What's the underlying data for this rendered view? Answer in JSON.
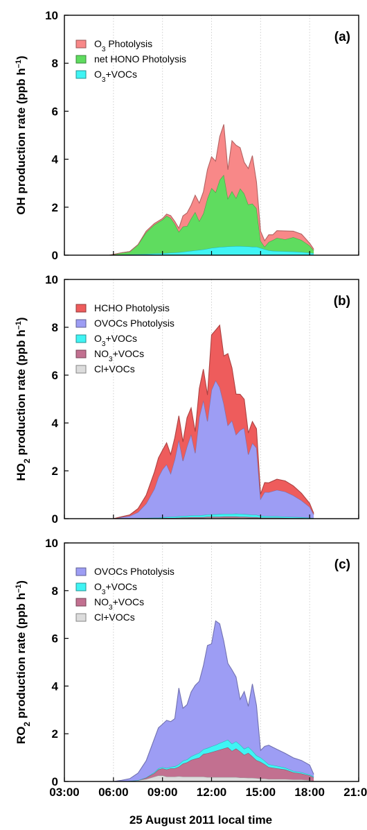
{
  "figure": {
    "xlabel": "25 August 2011 local time"
  },
  "chart_data": [
    {
      "type": "area",
      "panel_label": "(a)",
      "ylabel": "OH production rate (ppb h⁻¹)",
      "ylabel_parts": {
        "pre": "OH production rate (ppb h",
        "sup": "–1",
        "post": ")"
      },
      "xlim": [
        "03:00",
        "21:00"
      ],
      "ylim": [
        0,
        10
      ],
      "x_ticks": [
        "03:00",
        "06:00",
        "09:00",
        "12:00",
        "15:00",
        "18:00",
        "21:00"
      ],
      "y_ticks": [
        "0",
        "2",
        "4",
        "6",
        "8",
        "10"
      ],
      "grid": "vertical dotted at each tick",
      "legend_position": "top-left",
      "x": [
        "05:45",
        "06:30",
        "07:00",
        "07:30",
        "08:00",
        "08:30",
        "09:00",
        "09:15",
        "09:30",
        "09:45",
        "10:00",
        "10:15",
        "10:30",
        "10:45",
        "11:00",
        "11:15",
        "11:30",
        "11:45",
        "12:00",
        "12:15",
        "12:30",
        "12:45",
        "13:00",
        "13:15",
        "13:30",
        "13:45",
        "14:00",
        "14:15",
        "14:30",
        "14:45",
        "15:00",
        "15:15",
        "15:30",
        "15:45",
        "16:00",
        "16:30",
        "17:00",
        "17:30",
        "18:00",
        "18:15"
      ],
      "series": [
        {
          "name": "O3+VOCs",
          "label_parts": [
            [
              "O",
              ""
            ],
            [
              "3",
              "sub"
            ],
            [
              "+VOCs",
              ""
            ]
          ],
          "color": "#3ff4f4",
          "values": [
            0,
            0.02,
            0.03,
            0.04,
            0.05,
            0.07,
            0.08,
            0.09,
            0.1,
            0.11,
            0.12,
            0.14,
            0.16,
            0.18,
            0.2,
            0.22,
            0.24,
            0.27,
            0.3,
            0.32,
            0.34,
            0.35,
            0.36,
            0.37,
            0.38,
            0.38,
            0.37,
            0.36,
            0.35,
            0.35,
            0.3,
            0.25,
            0.2,
            0.18,
            0.17,
            0.16,
            0.15,
            0.13,
            0.1,
            0.08
          ]
        },
        {
          "name": "net HONO Photolysis",
          "color": "#5fdc5f",
          "values": [
            0,
            0.08,
            0.12,
            0.4,
            0.9,
            1.2,
            1.4,
            1.55,
            1.45,
            1.2,
            0.85,
            1.05,
            1.05,
            1.35,
            1.6,
            1.2,
            1.5,
            2.1,
            2.5,
            2.3,
            2.8,
            3.0,
            2.0,
            2.3,
            2.0,
            2.4,
            2.2,
            1.75,
            1.8,
            1.6,
            0.3,
            0.1,
            0.35,
            0.45,
            0.55,
            0.5,
            0.6,
            0.5,
            0.3,
            0.12
          ]
        },
        {
          "name": "O3 Photolysis",
          "label_parts": [
            [
              "O",
              ""
            ],
            [
              "3",
              "sub"
            ],
            [
              " Photolysis",
              ""
            ]
          ],
          "color": "#f88888",
          "values": [
            0,
            0,
            0,
            0,
            0.05,
            0.05,
            0.05,
            0.07,
            0.1,
            0.1,
            0.15,
            0.45,
            0.55,
            0.55,
            0.7,
            0.75,
            0.9,
            1.2,
            1.3,
            1.3,
            1.8,
            2.1,
            1.2,
            2.1,
            2.2,
            1.7,
            1.3,
            1.5,
            2.0,
            1.1,
            0.4,
            0.25,
            0.3,
            0.22,
            0.3,
            0.35,
            0.25,
            0.25,
            0.1,
            0.05
          ]
        }
      ],
      "legend_order": [
        "O3 Photolysis",
        "net HONO Photolysis",
        "O3+VOCs"
      ]
    },
    {
      "type": "area",
      "panel_label": "(b)",
      "ylabel": "HO2 production rate (ppb h⁻¹)",
      "ylabel_parts": {
        "pre": "HO",
        "sub": "2",
        "mid": " production rate (ppb h",
        "sup": "–1",
        "post": ")"
      },
      "xlim": [
        "03:00",
        "21:00"
      ],
      "ylim": [
        0,
        10
      ],
      "x_ticks": [
        "03:00",
        "06:00",
        "09:00",
        "12:00",
        "15:00",
        "18:00",
        "21:00"
      ],
      "y_ticks": [
        "0",
        "2",
        "4",
        "6",
        "8",
        "10"
      ],
      "grid": "vertical dotted at each tick",
      "legend_position": "top-left",
      "x": [
        "06:00",
        "06:30",
        "07:00",
        "07:30",
        "08:00",
        "08:30",
        "08:45",
        "09:00",
        "09:15",
        "09:30",
        "09:45",
        "10:00",
        "10:15",
        "10:30",
        "10:45",
        "11:00",
        "11:15",
        "11:30",
        "11:45",
        "12:00",
        "12:15",
        "12:30",
        "12:45",
        "13:00",
        "13:15",
        "13:30",
        "13:45",
        "14:00",
        "14:15",
        "14:30",
        "14:45",
        "15:00",
        "15:15",
        "15:30",
        "16:00",
        "16:30",
        "17:00",
        "17:30",
        "18:00",
        "18:15"
      ],
      "series": [
        {
          "name": "Cl+VOCs",
          "label_parts": [
            [
              "Cl+VOCs",
              ""
            ]
          ],
          "color": "#dcdcdc",
          "values": [
            0,
            0,
            0,
            0,
            0.01,
            0.01,
            0.01,
            0.02,
            0.02,
            0.02,
            0.02,
            0.02,
            0.03,
            0.03,
            0.03,
            0.03,
            0.03,
            0.03,
            0.04,
            0.04,
            0.04,
            0.04,
            0.04,
            0.04,
            0.04,
            0.04,
            0.04,
            0.04,
            0.03,
            0.03,
            0.03,
            0.02,
            0.02,
            0.02,
            0.02,
            0.02,
            0.01,
            0.01,
            0.01,
            0
          ]
        },
        {
          "name": "NO3+VOCs",
          "label_parts": [
            [
              "NO",
              ""
            ],
            [
              "3",
              "sub"
            ],
            [
              "+VOCs",
              ""
            ]
          ],
          "color": "#c27090",
          "values": [
            0,
            0,
            0,
            0,
            0,
            0,
            0,
            0,
            0.01,
            0.01,
            0.01,
            0.02,
            0.02,
            0.02,
            0.03,
            0.03,
            0.03,
            0.03,
            0.04,
            0.04,
            0.04,
            0.04,
            0.05,
            0.05,
            0.05,
            0.05,
            0.04,
            0.04,
            0.04,
            0.03,
            0.03,
            0.02,
            0.02,
            0.02,
            0.02,
            0.01,
            0.01,
            0.01,
            0,
            0
          ]
        },
        {
          "name": "O3+VOCs",
          "label_parts": [
            [
              "O",
              ""
            ],
            [
              "3",
              "sub"
            ],
            [
              "+VOCs",
              ""
            ]
          ],
          "color": "#3ff4f4",
          "values": [
            0,
            0.01,
            0.01,
            0.02,
            0.02,
            0.03,
            0.03,
            0.04,
            0.04,
            0.05,
            0.05,
            0.06,
            0.06,
            0.07,
            0.07,
            0.08,
            0.08,
            0.09,
            0.09,
            0.1,
            0.1,
            0.11,
            0.11,
            0.11,
            0.11,
            0.12,
            0.12,
            0.11,
            0.11,
            0.1,
            0.1,
            0.08,
            0.07,
            0.06,
            0.06,
            0.05,
            0.05,
            0.04,
            0.03,
            0.02
          ]
        },
        {
          "name": "OVOCs Photolysis",
          "label_parts": [
            [
              "OVOCs Photolysis",
              ""
            ]
          ],
          "color": "#9d9df4",
          "values": [
            0,
            0.05,
            0.1,
            0.25,
            0.6,
            1.2,
            1.7,
            2.0,
            2.2,
            1.8,
            2.4,
            3.2,
            2.3,
            2.9,
            3.4,
            2.6,
            4.1,
            4.8,
            3.9,
            5.2,
            5.6,
            5.3,
            4.6,
            3.7,
            3.9,
            3.3,
            3.5,
            3.6,
            2.5,
            3.0,
            2.8,
            0.7,
            1.0,
            1.0,
            1.1,
            1.05,
            0.9,
            0.7,
            0.45,
            0.15
          ]
        },
        {
          "name": "HCHO Photolysis",
          "label_parts": [
            [
              "HCHO Photolysis",
              ""
            ]
          ],
          "color": "#ee5c5c",
          "values": [
            0,
            0.02,
            0.05,
            0.15,
            0.35,
            0.7,
            0.8,
            0.8,
            0.9,
            0.8,
            0.9,
            1.0,
            0.8,
            1.2,
            1.1,
            0.9,
            1.2,
            1.3,
            1.1,
            2.3,
            2.1,
            2.6,
            2.0,
            3.0,
            2.2,
            1.7,
            1.5,
            1.2,
            0.9,
            0.9,
            0.8,
            0.2,
            0.4,
            0.4,
            0.45,
            0.45,
            0.4,
            0.3,
            0.15,
            0.05
          ]
        }
      ],
      "legend_order": [
        "HCHO Photolysis",
        "OVOCs Photolysis",
        "O3+VOCs",
        "NO3+VOCs",
        "Cl+VOCs"
      ]
    },
    {
      "type": "area",
      "panel_label": "(c)",
      "ylabel": "RO2 production rate (ppb h⁻¹)",
      "ylabel_parts": {
        "pre": "RO",
        "sub": "2",
        "mid": " production rate (ppb h",
        "sup": "–1",
        "post": ")"
      },
      "xlim": [
        "03:00",
        "21:00"
      ],
      "ylim": [
        0,
        10
      ],
      "x_ticks": [
        "03:00",
        "06:00",
        "09:00",
        "12:00",
        "15:00",
        "18:00",
        "21:00"
      ],
      "y_ticks": [
        "0",
        "2",
        "4",
        "6",
        "8",
        "10"
      ],
      "grid": "vertical dotted at each tick",
      "legend_position": "top-left",
      "x": [
        "06:00",
        "06:30",
        "07:00",
        "07:30",
        "08:00",
        "08:30",
        "08:45",
        "09:00",
        "09:15",
        "09:30",
        "09:45",
        "10:00",
        "10:15",
        "10:30",
        "10:45",
        "11:00",
        "11:15",
        "11:30",
        "11:45",
        "12:00",
        "12:15",
        "12:30",
        "12:45",
        "13:00",
        "13:15",
        "13:30",
        "13:45",
        "14:00",
        "14:15",
        "14:30",
        "14:45",
        "15:00",
        "15:15",
        "15:30",
        "16:00",
        "16:30",
        "17:00",
        "17:30",
        "18:00",
        "18:15"
      ],
      "series": [
        {
          "name": "Cl+VOCs",
          "label_parts": [
            [
              "Cl+VOCs",
              ""
            ]
          ],
          "color": "#dcdcdc",
          "values": [
            0,
            0,
            0.02,
            0.05,
            0.1,
            0.2,
            0.25,
            0.25,
            0.2,
            0.2,
            0.2,
            0.22,
            0.2,
            0.2,
            0.2,
            0.2,
            0.2,
            0.2,
            0.18,
            0.18,
            0.18,
            0.18,
            0.18,
            0.18,
            0.18,
            0.18,
            0.16,
            0.16,
            0.15,
            0.15,
            0.14,
            0.12,
            0.12,
            0.1,
            0.1,
            0.1,
            0.08,
            0.08,
            0.05,
            0.02
          ]
        },
        {
          "name": "NO3+VOCs",
          "label_parts": [
            [
              "NO",
              ""
            ],
            [
              "3",
              "sub"
            ],
            [
              "+VOCs",
              ""
            ]
          ],
          "color": "#c27090",
          "values": [
            0,
            0,
            0,
            0,
            0.05,
            0.15,
            0.25,
            0.3,
            0.3,
            0.35,
            0.35,
            0.4,
            0.55,
            0.6,
            0.7,
            0.75,
            0.8,
            0.95,
            1.0,
            1.05,
            1.1,
            1.15,
            1.2,
            1.25,
            1.1,
            1.2,
            1.1,
            0.95,
            1.05,
            0.9,
            0.75,
            0.7,
            0.6,
            0.5,
            0.45,
            0.4,
            0.3,
            0.25,
            0.2,
            0.15
          ]
        },
        {
          "name": "O3+VOCs",
          "label_parts": [
            [
              "O",
              ""
            ],
            [
              "3",
              "sub"
            ],
            [
              "+VOCs",
              ""
            ]
          ],
          "color": "#3ff4f4",
          "values": [
            0,
            0,
            0,
            0,
            0.02,
            0.04,
            0.05,
            0.05,
            0.06,
            0.06,
            0.08,
            0.1,
            0.12,
            0.12,
            0.15,
            0.18,
            0.2,
            0.2,
            0.22,
            0.24,
            0.25,
            0.28,
            0.3,
            0.32,
            0.3,
            0.3,
            0.28,
            0.26,
            0.25,
            0.24,
            0.2,
            0.18,
            0.15,
            0.12,
            0.1,
            0.08,
            0.06,
            0.05,
            0.04,
            0.03
          ]
        },
        {
          "name": "OVOCs Photolysis",
          "label_parts": [
            [
              "OVOCs Photolysis",
              ""
            ]
          ],
          "color": "#9d9df4",
          "values": [
            0,
            0.05,
            0.1,
            0.3,
            0.7,
            1.4,
            1.7,
            1.8,
            2.0,
            1.9,
            2.0,
            3.2,
            2.2,
            2.3,
            2.7,
            2.9,
            3.0,
            3.5,
            4.3,
            4.3,
            5.2,
            5.0,
            4.2,
            3.2,
            3.1,
            2.7,
            1.9,
            2.4,
            1.7,
            2.8,
            2.1,
            0.3,
            0.6,
            0.8,
            0.7,
            0.6,
            0.55,
            0.5,
            0.4,
            0.1
          ]
        }
      ],
      "legend_order": [
        "OVOCs Photolysis",
        "O3+VOCs",
        "NO3+VOCs",
        "Cl+VOCs"
      ]
    }
  ]
}
